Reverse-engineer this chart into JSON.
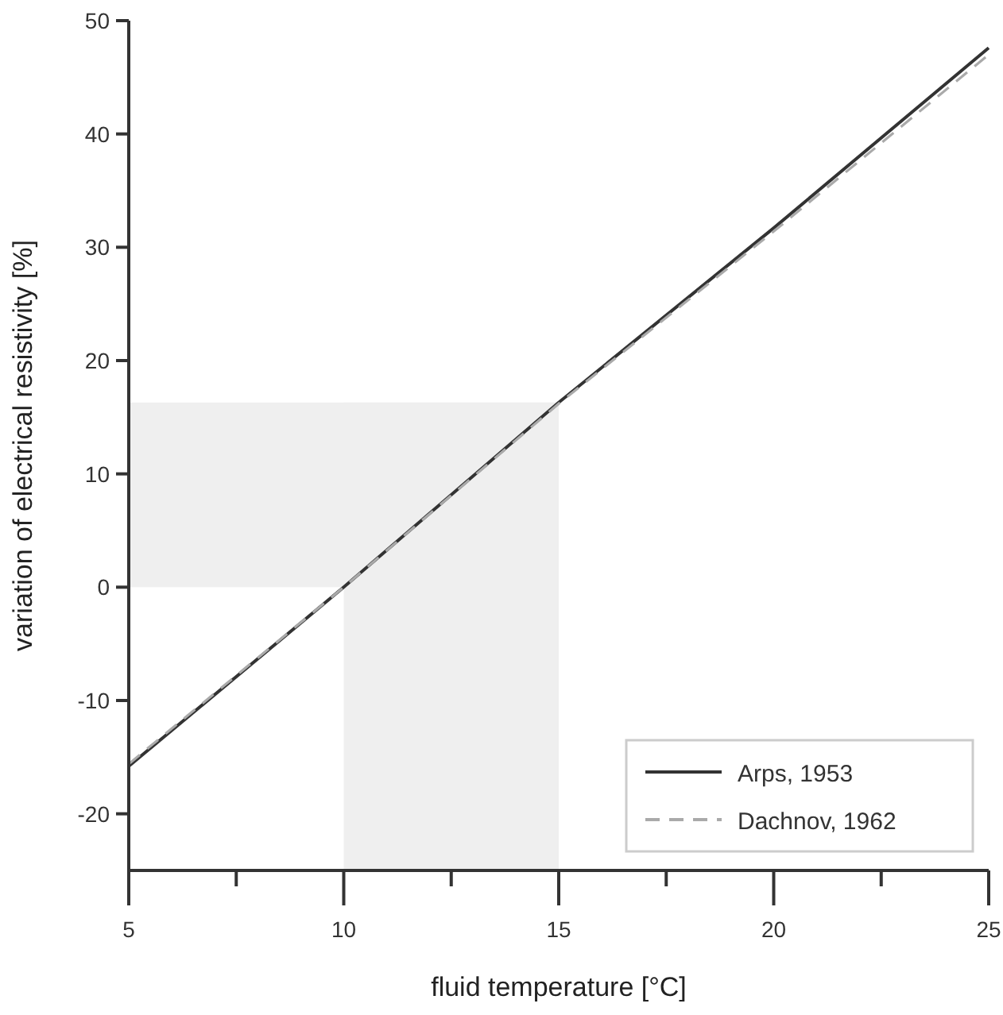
{
  "chart_data": {
    "type": "line",
    "xlabel": "fluid temperature [°C]",
    "ylabel": "variation of electrical resistivity [%]",
    "x": [
      5,
      10,
      15,
      20,
      25
    ],
    "series": [
      {
        "name": "Arps, 1953",
        "color": "#333333",
        "line_style": "solid",
        "values": [
          -15.8,
          0,
          16.3,
          31.7,
          47.6
        ]
      },
      {
        "name": "Dachnov, 1962",
        "color": "#aaaaaa",
        "line_style": "dashed",
        "values": [
          -15.6,
          0,
          16.2,
          31.4,
          47.0
        ]
      }
    ],
    "xlim": [
      5,
      25
    ],
    "ylim": [
      -25,
      50
    ],
    "xticks": [
      5,
      {
        "value": 7.5,
        "label": null
      },
      10,
      {
        "value": 12.5,
        "label": null
      },
      15,
      {
        "value": 17.5,
        "label": null
      },
      20,
      {
        "value": 22.5,
        "label": null
      },
      25
    ],
    "yticks": [
      -20,
      -10,
      0,
      10,
      20,
      30,
      40,
      50
    ],
    "bands": [
      {
        "axis": "x",
        "from": 10,
        "to": 15,
        "color": "#efefef"
      },
      {
        "axis": "y",
        "from": 0,
        "to": 16.3,
        "color": "#efefef"
      }
    ],
    "grid": false,
    "legend": "bottom right"
  }
}
